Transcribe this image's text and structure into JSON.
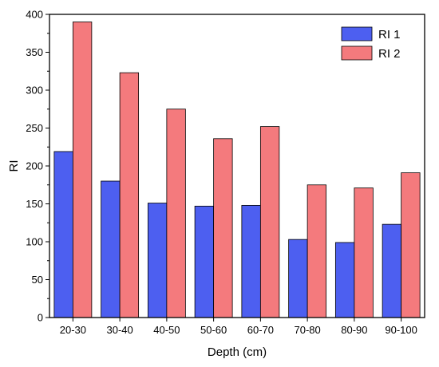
{
  "chart_data": {
    "type": "bar",
    "title": "",
    "xlabel": "Depth (cm)",
    "ylabel": "RI",
    "ylim": [
      0,
      400
    ],
    "y_ticks": [
      0,
      50,
      100,
      150,
      200,
      250,
      300,
      350,
      400
    ],
    "categories": [
      "20-30",
      "30-40",
      "40-50",
      "50-60",
      "60-70",
      "70-80",
      "80-90",
      "90-100"
    ],
    "series": [
      {
        "name": "RI 1",
        "color": "#4d5ff0",
        "values": [
          219,
          180,
          151,
          147,
          148,
          103,
          99,
          123
        ]
      },
      {
        "name": "RI 2",
        "color": "#f47a7d",
        "values": [
          390,
          323,
          275,
          236,
          252,
          175,
          171,
          191
        ]
      }
    ],
    "legend": "top-right",
    "grid": false
  }
}
